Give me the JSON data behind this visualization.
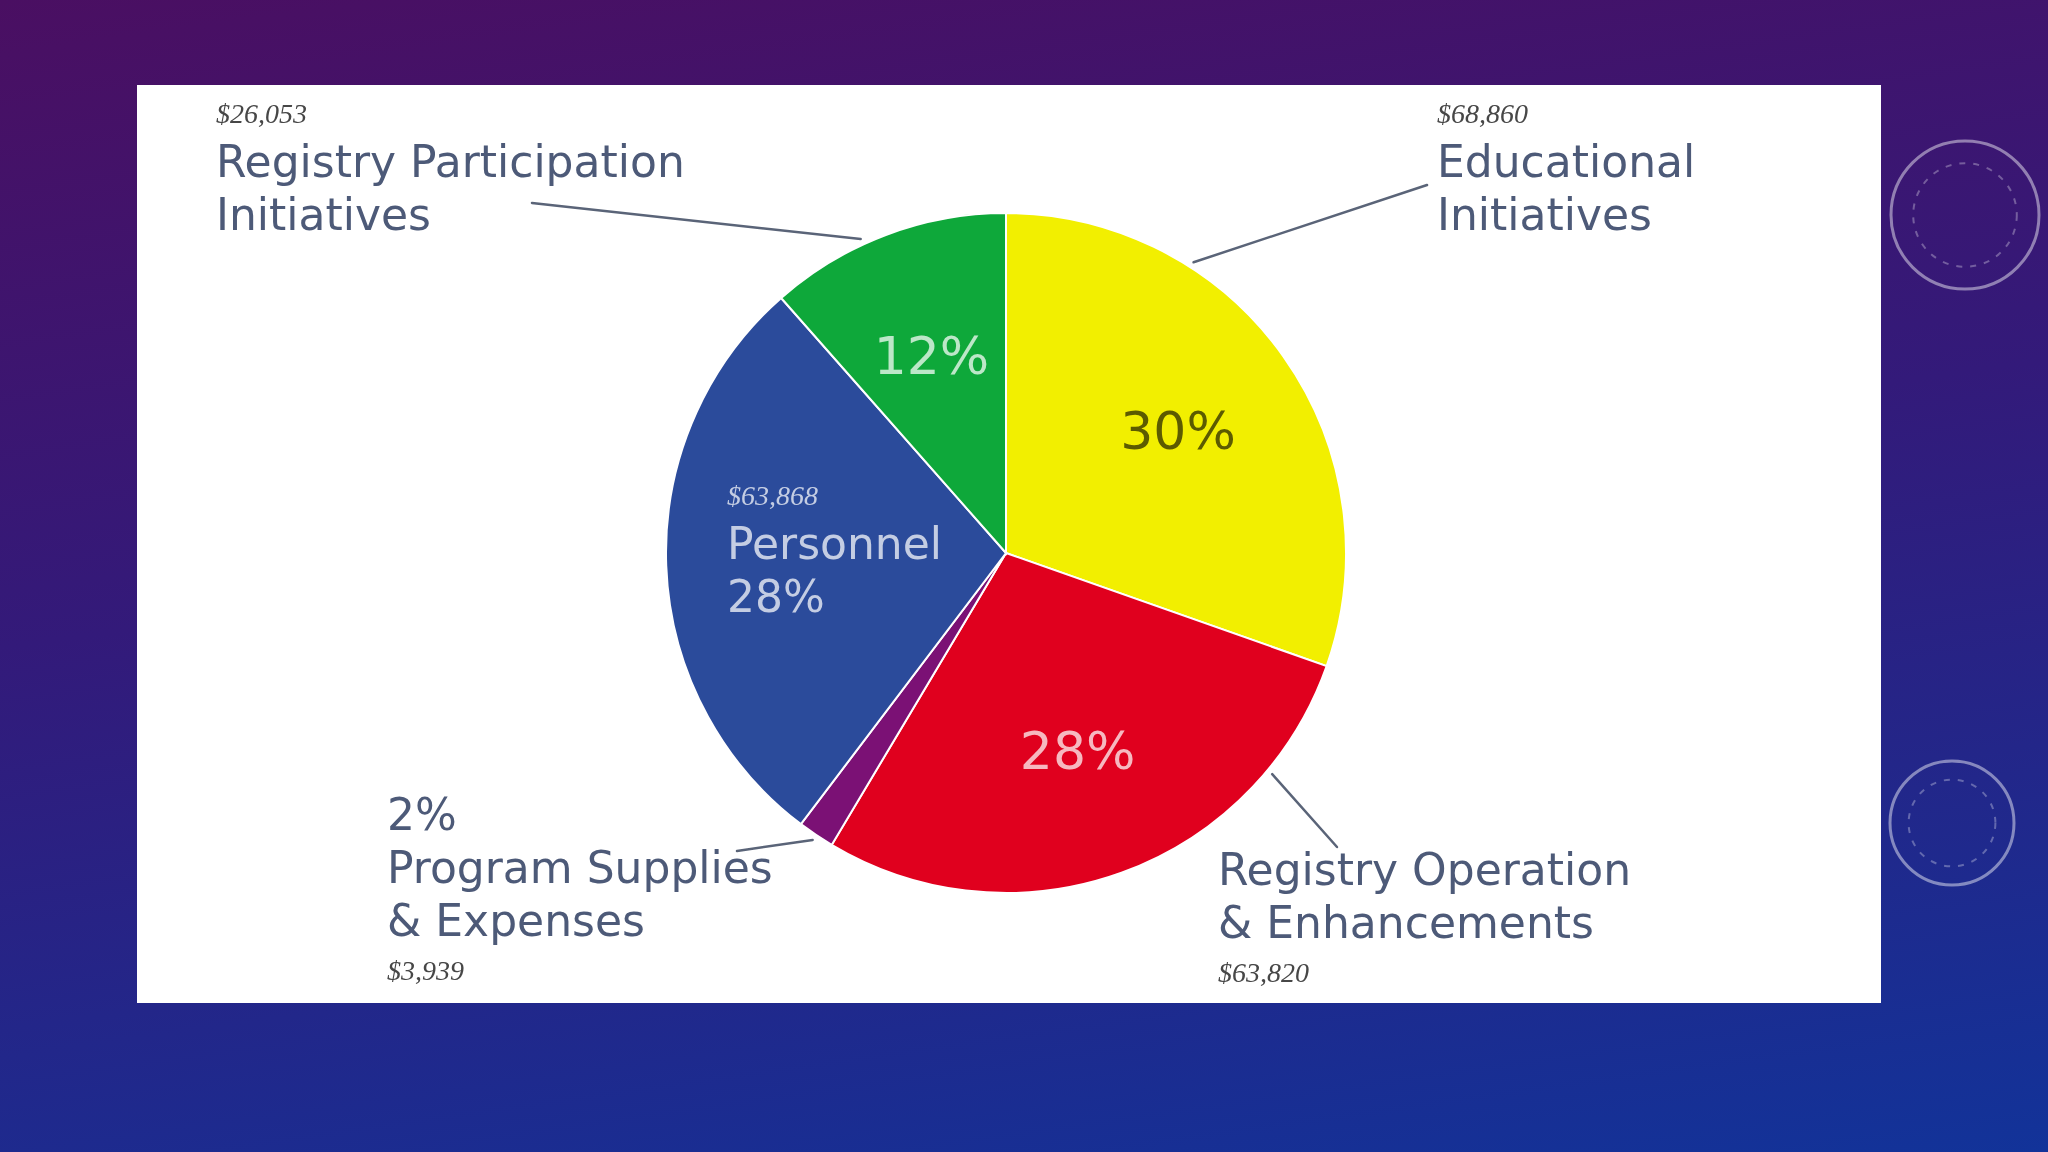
{
  "chart_data": {
    "type": "pie",
    "categories": [
      "Educational Initiatives",
      "Registry Operation & Enhancements",
      "Program Supplies & Expenses",
      "Personnel",
      "Registry Participation Initiatives"
    ],
    "values": [
      68860,
      63820,
      3939,
      63868,
      26053
    ],
    "value_labels": [
      "$68,860",
      "$63,820",
      "$3,939",
      "$63,868",
      "$26,053"
    ],
    "colors": [
      "#f2ef00",
      "#e0001e",
      "#7b1175",
      "#2b4b9b",
      "#0ea83a"
    ],
    "annotations": [
      {
        "text": "30%",
        "x": "Educational Initiatives"
      },
      {
        "text": "28%",
        "x": "Registry Operation & Enhancements"
      },
      {
        "text": "2%",
        "x": "Program Supplies & Expenses"
      },
      {
        "text": "28%",
        "x": "Personnel"
      },
      {
        "text": "12%",
        "x": "Registry Participation Initiatives"
      }
    ]
  }
}
